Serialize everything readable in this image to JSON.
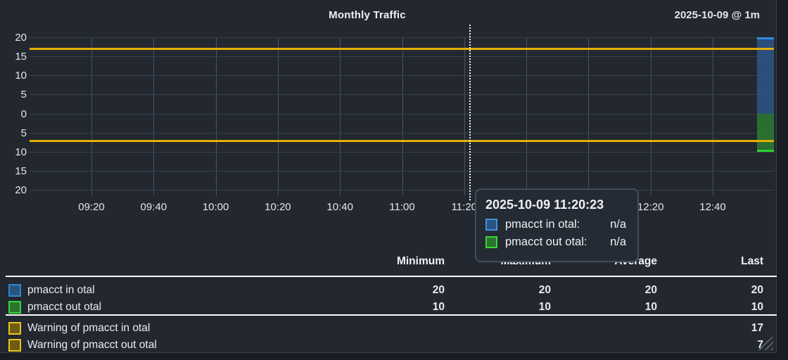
{
  "header": {
    "title": "Monthly Traffic",
    "timeinfo": "2025-10-09 @ 1m"
  },
  "chart_data": {
    "type": "area",
    "title": "Monthly Traffic",
    "xlabel": "",
    "ylabel": "",
    "ylim": [
      -20,
      20
    ],
    "grid": true,
    "y_tick_labels": [
      "20",
      "15",
      "10",
      "5",
      "0",
      "5",
      "10",
      "15",
      "20"
    ],
    "x_tick_labels": [
      "09:20",
      "09:40",
      "10:00",
      "10:20",
      "10:40",
      "11:00",
      "11:20",
      "11:40",
      "12:00",
      "12:20",
      "12:40"
    ],
    "note": "in/out traffic mirrored around zero; only the final sample (far right) has data, drawn as a full-height block",
    "series": [
      {
        "name": "pmacct in otal",
        "side": "in",
        "fill": "#2c5380",
        "edge": "#2f8be0",
        "min": 20,
        "max": 20,
        "avg": 20,
        "last": 20
      },
      {
        "name": "pmacct out otal",
        "side": "out",
        "fill": "#2b7530",
        "edge": "#2fcf2f",
        "min": 10,
        "max": 10,
        "avg": 10,
        "last": 10
      }
    ],
    "warning_lines": [
      {
        "name": "Warning of pmacct in otal",
        "value": 17,
        "color": "#e2b007"
      },
      {
        "name": "Warning of pmacct out otal",
        "value": -7,
        "color": "#e2b007"
      }
    ],
    "crosshair": {
      "time": "11:20:23"
    },
    "legend_position": "bottom"
  },
  "tooltip": {
    "timestamp": "2025-10-09 11:20:23",
    "rows": [
      {
        "label": "pmacct in otal:",
        "value": "n/a",
        "fill": "#2c5380",
        "border": "#4193e0"
      },
      {
        "label": "pmacct out otal:",
        "value": "n/a",
        "fill": "#2b7530",
        "border": "#35d935"
      }
    ]
  },
  "legend": {
    "columns": [
      "Minimum",
      "Maximum",
      "Average",
      "Last"
    ],
    "rows": [
      {
        "label": "pmacct in otal",
        "fill": "#2c5380",
        "border": "#2e86d4",
        "min": "20",
        "max": "20",
        "avg": "20",
        "last": "20"
      },
      {
        "label": "pmacct out otal",
        "fill": "#2b7530",
        "border": "#35d935",
        "min": "10",
        "max": "10",
        "avg": "10",
        "last": "10"
      },
      {
        "label": "Warning of pmacct in otal",
        "fill": "#6e5c10",
        "border": "#ecc31e",
        "min": "",
        "max": "",
        "avg": "",
        "last": "17"
      },
      {
        "label": "Warning of pmacct out otal",
        "fill": "#6e5c10",
        "border": "#ecc31e",
        "min": "",
        "max": "",
        "avg": "",
        "last": "7"
      }
    ]
  }
}
